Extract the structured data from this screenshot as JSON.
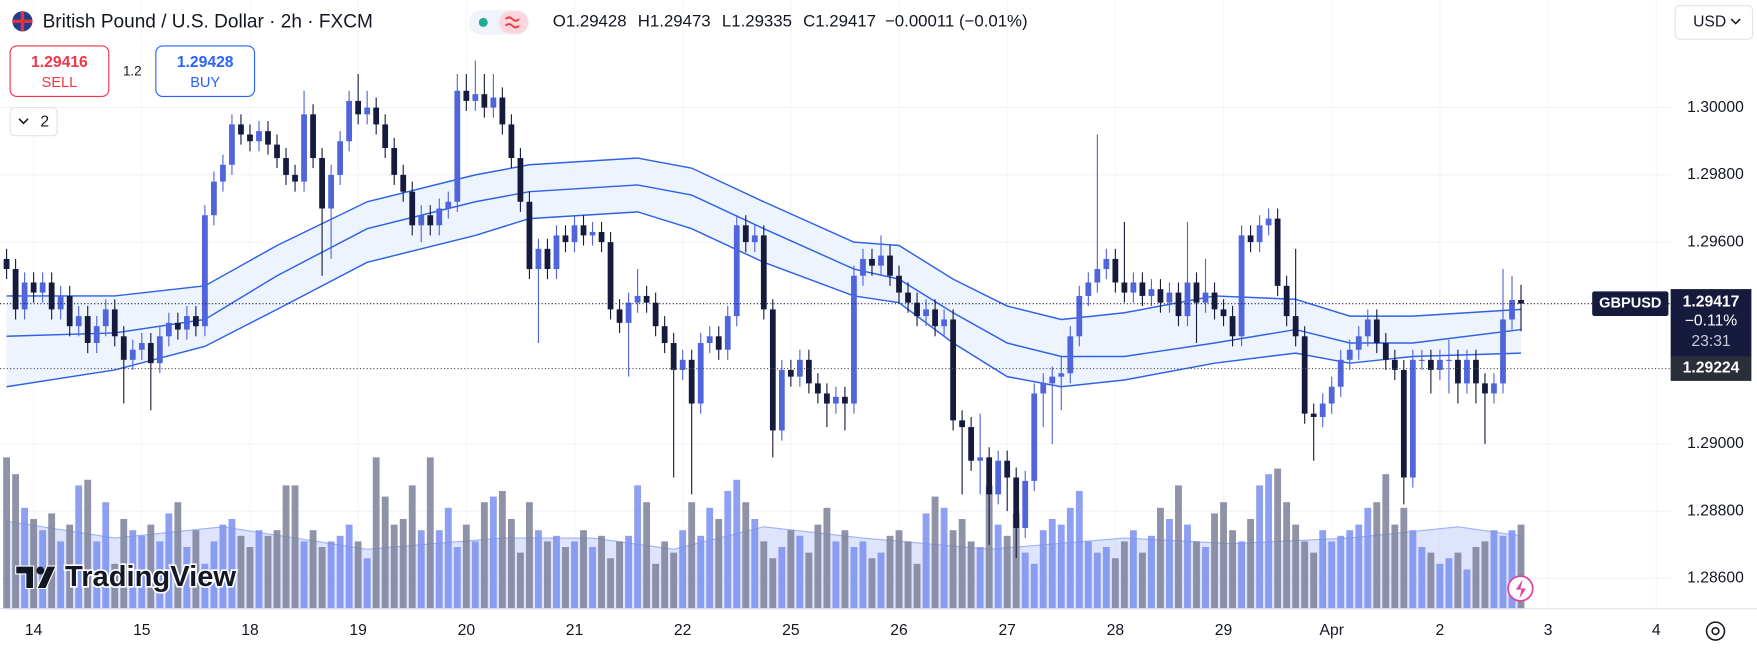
{
  "toolbar": {
    "sell_price": 1.29416,
    "sell_label": "SELL",
    "spread": 1.2,
    "buy_price": 1.29428,
    "buy_label": "BUY",
    "indicator_count": 2,
    "currency": "USD",
    "watermark": "TradingView"
  },
  "chart_data": {
    "type": "candlestick",
    "title": "British Pound / U.S. Dollar · 2h · FXCM",
    "ohlc_labels": [
      "O",
      "H",
      "L",
      "C"
    ],
    "change_label": "−0.00011 (−0.01%)",
    "symbol_badge": "GBPUSD",
    "change_pct": "−0.11%",
    "countdown": "23:31",
    "level_line": 1.29224,
    "up_color": "#5064dc",
    "down_color": "#161b3d",
    "volume_up_color": "#7b8ff0",
    "volume_down_color": "#7d8099",
    "ylim": [
      1.2851,
      1.3032
    ],
    "yticks": [
      {
        "value": 1.286,
        "label": "1.28600"
      },
      {
        "value": 1.288,
        "label": "1.28800"
      },
      {
        "value": 1.29,
        "label": "1.29000"
      },
      {
        "value": 1.296,
        "label": "1.29600"
      },
      {
        "value": 1.298,
        "label": "1.29800"
      },
      {
        "value": 1.3,
        "label": "1.30000"
      }
    ],
    "xlim": [
      -0.73,
      184.6
    ],
    "xticks": [
      {
        "value": 3,
        "label": "14"
      },
      {
        "value": 15,
        "label": "15"
      },
      {
        "value": 27,
        "label": "18"
      },
      {
        "value": 39,
        "label": "19"
      },
      {
        "value": 51,
        "label": "20"
      },
      {
        "value": 63,
        "label": "21"
      },
      {
        "value": 75,
        "label": "22"
      },
      {
        "value": 87,
        "label": "25"
      },
      {
        "value": 99,
        "label": "26"
      },
      {
        "value": 111,
        "label": "27"
      },
      {
        "value": 123,
        "label": "28"
      },
      {
        "value": 135,
        "label": "29"
      },
      {
        "value": 147,
        "label": "Apr"
      },
      {
        "value": 159,
        "label": "2"
      },
      {
        "value": 171,
        "label": "3"
      },
      {
        "value": 183,
        "label": "4"
      }
    ],
    "grid": true,
    "candles": [
      [
        1.2955,
        1.2958,
        1.2949,
        1.2952
      ],
      [
        1.2952,
        1.2955,
        1.2937,
        1.294
      ],
      [
        1.294,
        1.2951,
        1.2937,
        1.2948
      ],
      [
        1.2948,
        1.2951,
        1.2942,
        1.2945
      ],
      [
        1.2945,
        1.2951,
        1.2942,
        1.2948
      ],
      [
        1.2948,
        1.2951,
        1.2937,
        1.294
      ],
      [
        1.294,
        1.2947,
        1.2937,
        1.2944
      ],
      [
        1.2944,
        1.2947,
        1.2932,
        1.2935
      ],
      [
        1.2935,
        1.2941,
        1.2932,
        1.2938
      ],
      [
        1.2938,
        1.2941,
        1.2927,
        1.293
      ],
      [
        1.293,
        1.2938,
        1.2927,
        1.2935
      ],
      [
        1.2935,
        1.2943,
        1.2932,
        1.294
      ],
      [
        1.294,
        1.2943,
        1.2929,
        1.2932
      ],
      [
        1.2932,
        1.2935,
        1.2912,
        1.2925
      ],
      [
        1.2925,
        1.2931,
        1.2922,
        1.2928
      ],
      [
        1.2928,
        1.2933,
        1.2925,
        1.293
      ],
      [
        1.293,
        1.2933,
        1.291,
        1.2924
      ],
      [
        1.2924,
        1.2935,
        1.2921,
        1.2932
      ],
      [
        1.2932,
        1.2939,
        1.2929,
        1.2936
      ],
      [
        1.2936,
        1.2939,
        1.2931,
        1.2934
      ],
      [
        1.2934,
        1.2941,
        1.2931,
        1.2938
      ],
      [
        1.2938,
        1.2941,
        1.2932,
        1.2935
      ],
      [
        1.2935,
        1.2971,
        1.2932,
        1.2968
      ],
      [
        1.2968,
        1.2981,
        1.2965,
        1.2978
      ],
      [
        1.2978,
        1.2986,
        1.2975,
        1.2983
      ],
      [
        1.2983,
        1.2998,
        1.298,
        1.2995
      ],
      [
        1.2995,
        1.2998,
        1.2989,
        1.2992
      ],
      [
        1.2992,
        1.2995,
        1.2987,
        1.299
      ],
      [
        1.299,
        1.2996,
        1.2987,
        1.2993
      ],
      [
        1.2993,
        1.2996,
        1.2986,
        1.2989
      ],
      [
        1.2989,
        1.2992,
        1.2982,
        1.2985
      ],
      [
        1.2985,
        1.2988,
        1.2977,
        1.298
      ],
      [
        1.298,
        1.2983,
        1.2975,
        1.2978
      ],
      [
        1.2978,
        1.3005,
        1.2975,
        1.2998
      ],
      [
        1.2998,
        1.3001,
        1.2982,
        1.2985
      ],
      [
        1.2985,
        1.2988,
        1.295,
        1.297
      ],
      [
        1.297,
        1.2983,
        1.2955,
        1.298
      ],
      [
        1.298,
        1.2993,
        1.2977,
        1.299
      ],
      [
        1.299,
        1.3005,
        1.2987,
        1.3002
      ],
      [
        1.3002,
        1.301,
        1.2995,
        1.2998
      ],
      [
        1.2998,
        1.3005,
        1.2995,
        1.3
      ],
      [
        1.3,
        1.3003,
        1.2992,
        1.2995
      ],
      [
        1.2995,
        1.2998,
        1.2985,
        1.2988
      ],
      [
        1.2988,
        1.2991,
        1.2977,
        1.298
      ],
      [
        1.298,
        1.2983,
        1.2972,
        1.2975
      ],
      [
        1.2975,
        1.2978,
        1.2962,
        1.2965
      ],
      [
        1.2965,
        1.2971,
        1.296,
        1.2968
      ],
      [
        1.2968,
        1.2971,
        1.2962,
        1.2965
      ],
      [
        1.2965,
        1.2973,
        1.2962,
        1.297
      ],
      [
        1.297,
        1.2975,
        1.2967,
        1.2972
      ],
      [
        1.2972,
        1.301,
        1.2969,
        1.3005
      ],
      [
        1.3005,
        1.301,
        1.2999,
        1.3002
      ],
      [
        1.3002,
        1.3014,
        1.2999,
        1.3004
      ],
      [
        1.3004,
        1.301,
        1.2997,
        1.3
      ],
      [
        1.3,
        1.301,
        1.2997,
        1.3003
      ],
      [
        1.3003,
        1.3006,
        1.2992,
        1.2995
      ],
      [
        1.2995,
        1.2998,
        1.2982,
        1.2985
      ],
      [
        1.2985,
        1.2988,
        1.2969,
        1.2972
      ],
      [
        1.2972,
        1.2975,
        1.2949,
        1.2952
      ],
      [
        1.2952,
        1.2961,
        1.293,
        1.2958
      ],
      [
        1.2958,
        1.2961,
        1.2949,
        1.2952
      ],
      [
        1.2952,
        1.2965,
        1.2949,
        1.2962
      ],
      [
        1.2962,
        1.2965,
        1.2957,
        1.296
      ],
      [
        1.296,
        1.2968,
        1.2957,
        1.2965
      ],
      [
        1.2965,
        1.2968,
        1.2959,
        1.2962
      ],
      [
        1.2962,
        1.2966,
        1.2959,
        1.2963
      ],
      [
        1.2963,
        1.2966,
        1.2957,
        1.296
      ],
      [
        1.296,
        1.2963,
        1.2937,
        1.294
      ],
      [
        1.294,
        1.2943,
        1.2933,
        1.2936
      ],
      [
        1.2936,
        1.2945,
        1.292,
        1.2942
      ],
      [
        1.2942,
        1.2952,
        1.2939,
        1.2944
      ],
      [
        1.2944,
        1.2947,
        1.2939,
        1.2942
      ],
      [
        1.2942,
        1.2945,
        1.2932,
        1.2935
      ],
      [
        1.2935,
        1.2938,
        1.2927,
        1.293
      ],
      [
        1.293,
        1.2933,
        1.289,
        1.2922
      ],
      [
        1.2922,
        1.2928,
        1.2919,
        1.2925
      ],
      [
        1.2925,
        1.2928,
        1.2885,
        1.2912
      ],
      [
        1.2912,
        1.2933,
        1.2909,
        1.293
      ],
      [
        1.293,
        1.2935,
        1.2927,
        1.2932
      ],
      [
        1.2932,
        1.2935,
        1.2925,
        1.2928
      ],
      [
        1.2928,
        1.2941,
        1.2925,
        1.2938
      ],
      [
        1.2938,
        1.2968,
        1.2935,
        1.2965
      ],
      [
        1.2965,
        1.2968,
        1.2957,
        1.296
      ],
      [
        1.296,
        1.2965,
        1.2957,
        1.2962
      ],
      [
        1.2962,
        1.2965,
        1.2937,
        1.294
      ],
      [
        1.294,
        1.2943,
        1.2896,
        1.2904
      ],
      [
        1.2904,
        1.2925,
        1.2901,
        1.2922
      ],
      [
        1.2922,
        1.2925,
        1.2917,
        1.292
      ],
      [
        1.292,
        1.2928,
        1.2917,
        1.2925
      ],
      [
        1.2925,
        1.2928,
        1.2915,
        1.2918
      ],
      [
        1.2918,
        1.2921,
        1.2912,
        1.2915
      ],
      [
        1.2915,
        1.2918,
        1.2905,
        1.2912
      ],
      [
        1.2912,
        1.2917,
        1.2909,
        1.2914
      ],
      [
        1.2914,
        1.2917,
        1.2904,
        1.2912
      ],
      [
        1.2912,
        1.2953,
        1.2909,
        1.295
      ],
      [
        1.295,
        1.2958,
        1.2947,
        1.2955
      ],
      [
        1.2955,
        1.2958,
        1.295,
        1.2953
      ],
      [
        1.2953,
        1.2962,
        1.295,
        1.2956
      ],
      [
        1.2956,
        1.2959,
        1.2947,
        1.295
      ],
      [
        1.295,
        1.2953,
        1.2942,
        1.2945
      ],
      [
        1.2945,
        1.2948,
        1.2939,
        1.2942
      ],
      [
        1.2942,
        1.2945,
        1.2935,
        1.2938
      ],
      [
        1.2938,
        1.2943,
        1.2935,
        1.294
      ],
      [
        1.294,
        1.2943,
        1.2932,
        1.2935
      ],
      [
        1.2935,
        1.294,
        1.2932,
        1.2937
      ],
      [
        1.2937,
        1.294,
        1.2904,
        1.2907
      ],
      [
        1.2907,
        1.291,
        1.2885,
        1.2905
      ],
      [
        1.2905,
        1.2908,
        1.2892,
        1.2895
      ],
      [
        1.2895,
        1.2909,
        1.2885,
        1.2896
      ],
      [
        1.2896,
        1.2899,
        1.287,
        1.2885
      ],
      [
        1.2885,
        1.2898,
        1.2882,
        1.2895
      ],
      [
        1.2895,
        1.2898,
        1.288,
        1.289
      ],
      [
        1.289,
        1.2893,
        1.2866,
        1.2875
      ],
      [
        1.2875,
        1.2892,
        1.2872,
        1.2889
      ],
      [
        1.2889,
        1.2918,
        1.2886,
        1.2915
      ],
      [
        1.2915,
        1.2921,
        1.2905,
        1.2918
      ],
      [
        1.2918,
        1.2923,
        1.29,
        1.292
      ],
      [
        1.292,
        1.2926,
        1.291,
        1.2921
      ],
      [
        1.2921,
        1.2935,
        1.2918,
        1.2932
      ],
      [
        1.2932,
        1.2947,
        1.2929,
        1.2944
      ],
      [
        1.2944,
        1.2951,
        1.2941,
        1.2948
      ],
      [
        1.2948,
        1.2992,
        1.2945,
        1.2952
      ],
      [
        1.2952,
        1.2958,
        1.2949,
        1.2955
      ],
      [
        1.2955,
        1.2958,
        1.2945,
        1.2948
      ],
      [
        1.2948,
        1.2966,
        1.2942,
        1.2945
      ],
      [
        1.2945,
        1.2951,
        1.2942,
        1.2948
      ],
      [
        1.2948,
        1.2951,
        1.2941,
        1.2944
      ],
      [
        1.2944,
        1.2949,
        1.2941,
        1.2946
      ],
      [
        1.2946,
        1.2949,
        1.2939,
        1.2942
      ],
      [
        1.2942,
        1.2948,
        1.2939,
        1.2945
      ],
      [
        1.2945,
        1.2948,
        1.2935,
        1.2938
      ],
      [
        1.2938,
        1.2966,
        1.2935,
        1.2948
      ],
      [
        1.2948,
        1.2951,
        1.293,
        1.2942
      ],
      [
        1.2942,
        1.2955,
        1.2939,
        1.2945
      ],
      [
        1.2945,
        1.2948,
        1.2937,
        1.294
      ],
      [
        1.294,
        1.2943,
        1.2935,
        1.2938
      ],
      [
        1.2938,
        1.2941,
        1.2929,
        1.2932
      ],
      [
        1.2932,
        1.2965,
        1.2929,
        1.2962
      ],
      [
        1.2962,
        1.2965,
        1.2957,
        1.296
      ],
      [
        1.296,
        1.2968,
        1.2957,
        1.2965
      ],
      [
        1.2965,
        1.297,
        1.2962,
        1.2967
      ],
      [
        1.2967,
        1.297,
        1.2944,
        1.2947
      ],
      [
        1.2947,
        1.295,
        1.2935,
        1.2938
      ],
      [
        1.2938,
        1.2958,
        1.2929,
        1.2932
      ],
      [
        1.2932,
        1.2935,
        1.2906,
        1.2909
      ],
      [
        1.2909,
        1.2912,
        1.2895,
        1.2908
      ],
      [
        1.2908,
        1.2915,
        1.2905,
        1.2912
      ],
      [
        1.2912,
        1.292,
        1.2909,
        1.2917
      ],
      [
        1.2917,
        1.2928,
        1.2914,
        1.2925
      ],
      [
        1.2925,
        1.2931,
        1.2922,
        1.2928
      ],
      [
        1.2928,
        1.2935,
        1.2925,
        1.2932
      ],
      [
        1.2932,
        1.294,
        1.2929,
        1.2937
      ],
      [
        1.2937,
        1.294,
        1.2927,
        1.293
      ],
      [
        1.293,
        1.2933,
        1.2922,
        1.2925
      ],
      [
        1.2925,
        1.2928,
        1.2919,
        1.2922
      ],
      [
        1.2922,
        1.2925,
        1.2882,
        1.289
      ],
      [
        1.289,
        1.2928,
        1.2887,
        1.2925
      ],
      [
        1.2925,
        1.2928,
        1.2922,
        1.2925
      ],
      [
        1.2925,
        1.2928,
        1.2915,
        1.2922
      ],
      [
        1.2922,
        1.2928,
        1.2919,
        1.2925
      ],
      [
        1.2925,
        1.2931,
        1.2915,
        1.2925
      ],
      [
        1.2925,
        1.2928,
        1.2912,
        1.2918
      ],
      [
        1.2918,
        1.2928,
        1.2915,
        1.2925
      ],
      [
        1.2925,
        1.2928,
        1.2912,
        1.2918
      ],
      [
        1.2918,
        1.2921,
        1.29,
        1.2915
      ],
      [
        1.2915,
        1.2921,
        1.2912,
        1.2918
      ],
      [
        1.2918,
        1.2952,
        1.2915,
        1.2937
      ],
      [
        1.2937,
        1.295,
        1.2934,
        1.29428
      ],
      [
        1.29428,
        1.29473,
        1.29335,
        1.29417
      ]
    ],
    "volume_ylim": [
      0,
      150
    ],
    "volume": [
      135,
      120,
      90,
      80,
      70,
      85,
      60,
      75,
      110,
      115,
      60,
      95,
      40,
      80,
      70,
      65,
      75,
      60,
      85,
      95,
      55,
      70,
      40,
      60,
      75,
      80,
      65,
      55,
      70,
      65,
      70,
      110,
      110,
      60,
      70,
      55,
      60,
      65,
      75,
      60,
      45,
      135,
      100,
      75,
      80,
      110,
      70,
      135,
      70,
      90,
      55,
      75,
      60,
      95,
      100,
      105,
      80,
      50,
      95,
      70,
      60,
      65,
      55,
      60,
      70,
      55,
      65,
      45,
      60,
      65,
      110,
      95,
      40,
      60,
      50,
      70,
      95,
      65,
      90,
      80,
      105,
      115,
      95,
      80,
      60,
      45,
      55,
      70,
      65,
      50,
      75,
      90,
      60,
      70,
      55,
      60,
      45,
      50,
      65,
      70,
      60,
      40,
      85,
      100,
      90,
      70,
      80,
      60,
      55,
      110,
      75,
      65,
      85,
      50,
      40,
      70,
      80,
      75,
      90,
      105,
      60,
      50,
      55,
      45,
      60,
      70,
      50,
      65,
      90,
      80,
      110,
      75,
      60,
      55,
      85,
      95,
      70,
      60,
      80,
      110,
      120,
      125,
      95,
      75,
      60,
      50,
      70,
      60,
      65,
      70,
      75,
      90,
      95,
      120,
      75,
      90,
      70,
      55,
      50,
      40,
      45,
      50,
      35,
      55,
      60,
      70,
      65,
      70,
      75
    ],
    "volume_ma": {
      "color": "#b3c3f7",
      "x": [
        0,
        12,
        24,
        40,
        55,
        65,
        74,
        84,
        95,
        109,
        124,
        136,
        149,
        161,
        168
      ],
      "values": [
        78,
        63,
        73,
        53,
        63,
        63,
        53,
        73,
        63,
        53,
        63,
        58,
        63,
        73,
        65
      ]
    },
    "bands": {
      "color": "#2e62e6",
      "fill": "#e9f1fd",
      "x": [
        0,
        12,
        22,
        30,
        40,
        52,
        58,
        70,
        76,
        84,
        94,
        99,
        105,
        111,
        117,
        124,
        134,
        143,
        149,
        156,
        168
      ],
      "upper": [
        1.2944,
        1.2944,
        1.2947,
        1.2959,
        1.2972,
        1.298,
        1.2983,
        1.2985,
        1.2982,
        1.2972,
        1.296,
        1.2959,
        1.2949,
        1.2941,
        1.2937,
        1.2939,
        1.2944,
        1.2943,
        1.2938,
        1.2938,
        1.294
      ],
      "middle": [
        1.2932,
        1.2933,
        1.2937,
        1.295,
        1.2964,
        1.2972,
        1.2975,
        1.2977,
        1.2974,
        1.2964,
        1.2952,
        1.2949,
        1.2939,
        1.293,
        1.2926,
        1.2926,
        1.293,
        1.2934,
        1.293,
        1.293,
        1.2934
      ],
      "lower": [
        1.2917,
        1.2922,
        1.2929,
        1.294,
        1.2954,
        1.2962,
        1.2967,
        1.2969,
        1.2964,
        1.2954,
        1.2944,
        1.2942,
        1.293,
        1.292,
        1.2917,
        1.2919,
        1.2924,
        1.2927,
        1.2924,
        1.2926,
        1.2927
      ]
    }
  }
}
